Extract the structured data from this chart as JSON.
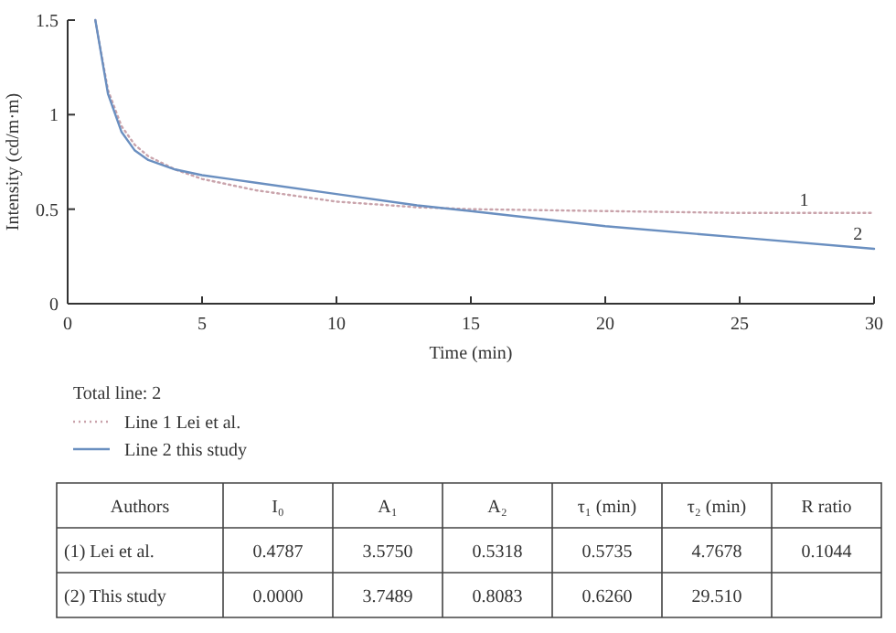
{
  "chart_data": [
    {
      "type": "line",
      "xlabel": "Time (min)",
      "ylabel": "Intensity (cd/m·m)",
      "xlim": [
        0,
        30
      ],
      "ylim": [
        0,
        1.5
      ],
      "xticks": [
        0,
        5,
        10,
        15,
        20,
        25,
        30
      ],
      "yticks": [
        0,
        0.5,
        1,
        1.5
      ],
      "grid": false,
      "legend": "bottom",
      "legend_title": "Total line: 2",
      "marker": "none",
      "series": [
        {
          "name": "Line 1 Lei et al.",
          "color": "#c9a3ab",
          "line_style": "dotted",
          "x": [
            1.03,
            1.5,
            2,
            2.5,
            3,
            4,
            5,
            7,
            10,
            13,
            15,
            20,
            25,
            30
          ],
          "values": [
            1.5,
            1.13,
            0.94,
            0.84,
            0.78,
            0.71,
            0.66,
            0.6,
            0.54,
            0.51,
            0.5,
            0.49,
            0.48,
            0.48
          ]
        },
        {
          "name": "Line 2 this study",
          "color": "#6a8fc0",
          "line_style": "solid",
          "x": [
            1.03,
            1.5,
            2,
            2.5,
            3,
            4,
            5,
            7,
            10,
            13,
            15,
            20,
            25,
            30
          ],
          "values": [
            1.5,
            1.11,
            0.91,
            0.81,
            0.76,
            0.71,
            0.68,
            0.64,
            0.58,
            0.52,
            0.49,
            0.41,
            0.35,
            0.29
          ]
        }
      ],
      "annotations": [
        {
          "text": "1",
          "x": 27.4,
          "y": 0.52
        },
        {
          "text": "2",
          "x": 29.4,
          "y": 0.34
        }
      ]
    },
    {
      "type": "other",
      "categories": [
        "Authors",
        "I₀",
        "A₁",
        "A₂",
        "τ₁ (min)",
        "τ₂ (min)",
        "R ratio"
      ],
      "y_categories": [
        "(1) Lei et al.",
        "(2) This study"
      ],
      "cell_labels": [
        [
          "0.4787",
          "3.5750",
          "0.5318",
          "0.5735",
          "4.7678",
          "0.1044"
        ],
        [
          "0.0000",
          "3.7489",
          "0.8083",
          "0.6260",
          "29.510",
          null
        ]
      ]
    }
  ]
}
